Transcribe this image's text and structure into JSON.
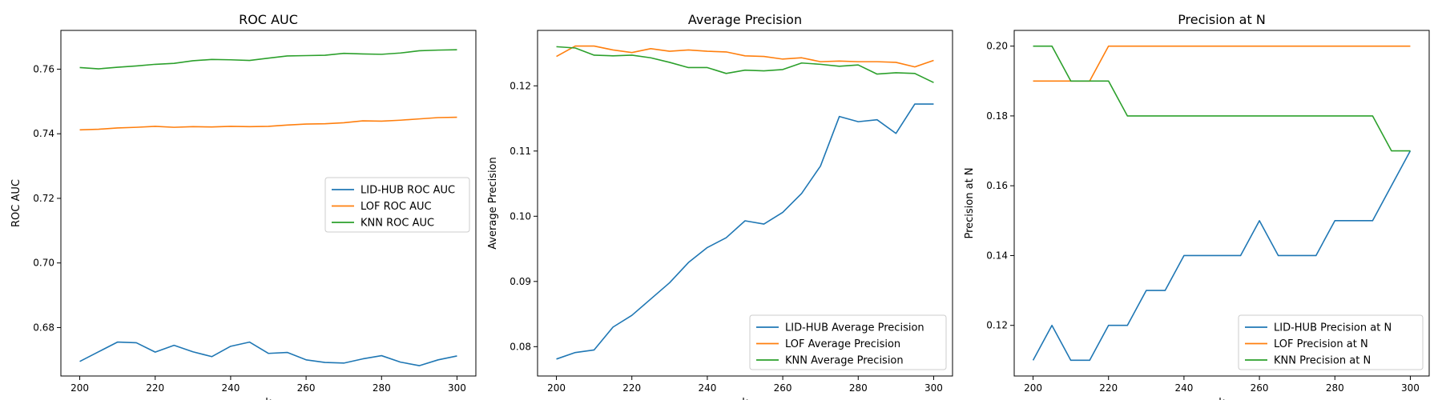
{
  "colors": {
    "lid_hub": "#1f77b4",
    "lof": "#ff7f0e",
    "knn": "#2ca02c"
  },
  "chart_data": [
    {
      "type": "line",
      "title": "ROC AUC",
      "xlabel": "k",
      "ylabel": "ROC AUC",
      "xlim": [
        195,
        305
      ],
      "ylim": [
        0.665,
        0.772
      ],
      "xticks": [
        200,
        220,
        240,
        260,
        280,
        300
      ],
      "xtick_labels": [
        "200",
        "220",
        "240",
        "260",
        "280",
        "300"
      ],
      "yticks": [
        0.68,
        0.7,
        0.72,
        0.74,
        0.76
      ],
      "ytick_labels": [
        "0.68",
        "0.70",
        "0.72",
        "0.74",
        "0.76"
      ],
      "legend_position": "center-right",
      "x": [
        200,
        205,
        210,
        215,
        220,
        225,
        230,
        235,
        240,
        245,
        250,
        255,
        260,
        265,
        270,
        275,
        280,
        285,
        290,
        295,
        300
      ],
      "series": [
        {
          "name": "LID-HUB ROC AUC",
          "color": "#1f77b4",
          "values": [
            0.6695,
            0.6725,
            0.6755,
            0.6753,
            0.6724,
            0.6745,
            0.6725,
            0.671,
            0.6742,
            0.6755,
            0.672,
            0.6723,
            0.67,
            0.6692,
            0.669,
            0.6703,
            0.6713,
            0.6693,
            0.6682,
            0.67,
            0.6712
          ]
        },
        {
          "name": "LOF ROC AUC",
          "color": "#ff7f0e",
          "values": [
            0.7412,
            0.7414,
            0.7418,
            0.742,
            0.7423,
            0.742,
            0.7422,
            0.7421,
            0.7423,
            0.7422,
            0.7423,
            0.7427,
            0.743,
            0.7431,
            0.7434,
            0.744,
            0.7439,
            0.7442,
            0.7446,
            0.745,
            0.7451
          ]
        },
        {
          "name": "KNN ROC AUC",
          "color": "#2ca02c",
          "values": [
            0.7605,
            0.7601,
            0.7606,
            0.761,
            0.7615,
            0.7618,
            0.7626,
            0.763,
            0.7629,
            0.7627,
            0.7634,
            0.7641,
            0.7642,
            0.7643,
            0.7649,
            0.7647,
            0.7646,
            0.765,
            0.7657,
            0.7659,
            0.766
          ]
        }
      ]
    },
    {
      "type": "line",
      "title": "Average Precision",
      "xlabel": "k",
      "ylabel": "Average Precision",
      "xlim": [
        195,
        305
      ],
      "ylim": [
        0.0755,
        0.1285
      ],
      "xticks": [
        200,
        220,
        240,
        260,
        280,
        300
      ],
      "xtick_labels": [
        "200",
        "220",
        "240",
        "260",
        "280",
        "300"
      ],
      "yticks": [
        0.08,
        0.09,
        0.1,
        0.11,
        0.12
      ],
      "ytick_labels": [
        "0.08",
        "0.09",
        "0.10",
        "0.11",
        "0.12"
      ],
      "legend_position": "lower-right",
      "x": [
        200,
        205,
        210,
        215,
        220,
        225,
        230,
        235,
        240,
        245,
        250,
        255,
        260,
        265,
        270,
        275,
        280,
        285,
        290,
        295,
        300
      ],
      "series": [
        {
          "name": "LID-HUB Average Precision",
          "color": "#1f77b4",
          "values": [
            0.0781,
            0.0791,
            0.0795,
            0.083,
            0.0848,
            0.0873,
            0.0898,
            0.0929,
            0.0952,
            0.0967,
            0.0993,
            0.0988,
            0.1006,
            0.1035,
            0.1077,
            0.1153,
            0.1145,
            0.1148,
            0.1127,
            0.1172,
            0.1172
          ]
        },
        {
          "name": "LOF Average Precision",
          "color": "#ff7f0e",
          "values": [
            0.1245,
            0.1261,
            0.1261,
            0.1255,
            0.1251,
            0.1257,
            0.1253,
            0.1255,
            0.1253,
            0.1252,
            0.1246,
            0.1245,
            0.1241,
            0.1243,
            0.1237,
            0.1238,
            0.1237,
            0.1237,
            0.1236,
            0.1229,
            0.1239
          ]
        },
        {
          "name": "KNN Average Precision",
          "color": "#2ca02c",
          "values": [
            0.126,
            0.1258,
            0.1247,
            0.1246,
            0.1247,
            0.1243,
            0.1236,
            0.1228,
            0.1228,
            0.1219,
            0.1224,
            0.1223,
            0.1225,
            0.1235,
            0.1233,
            0.123,
            0.1232,
            0.1218,
            0.122,
            0.1219,
            0.1205
          ]
        }
      ]
    },
    {
      "type": "line",
      "title": "Precision at N",
      "xlabel": "k",
      "ylabel": "Precision at N",
      "xlim": [
        195,
        305
      ],
      "ylim": [
        0.1055,
        0.2045
      ],
      "xticks": [
        200,
        220,
        240,
        260,
        280,
        300
      ],
      "xtick_labels": [
        "200",
        "220",
        "240",
        "260",
        "280",
        "300"
      ],
      "yticks": [
        0.12,
        0.14,
        0.16,
        0.18,
        0.2
      ],
      "ytick_labels": [
        "0.12",
        "0.14",
        "0.16",
        "0.18",
        "0.20"
      ],
      "legend_position": "lower-right",
      "x": [
        200,
        205,
        210,
        215,
        220,
        225,
        230,
        235,
        240,
        245,
        250,
        255,
        260,
        265,
        270,
        275,
        280,
        285,
        290,
        295,
        300
      ],
      "series": [
        {
          "name": "LID-HUB Precision at N",
          "color": "#1f77b4",
          "values": [
            0.11,
            0.12,
            0.11,
            0.11,
            0.12,
            0.12,
            0.13,
            0.13,
            0.14,
            0.14,
            0.14,
            0.14,
            0.15,
            0.14,
            0.14,
            0.14,
            0.15,
            0.15,
            0.15,
            0.16,
            0.17
          ]
        },
        {
          "name": "LOF Precision at N",
          "color": "#ff7f0e",
          "values": [
            0.19,
            0.19,
            0.19,
            0.19,
            0.2,
            0.2,
            0.2,
            0.2,
            0.2,
            0.2,
            0.2,
            0.2,
            0.2,
            0.2,
            0.2,
            0.2,
            0.2,
            0.2,
            0.2,
            0.2,
            0.2
          ]
        },
        {
          "name": "KNN Precision at N",
          "color": "#2ca02c",
          "values": [
            0.2,
            0.2,
            0.19,
            0.19,
            0.19,
            0.18,
            0.18,
            0.18,
            0.18,
            0.18,
            0.18,
            0.18,
            0.18,
            0.18,
            0.18,
            0.18,
            0.18,
            0.18,
            0.18,
            0.17,
            0.17
          ]
        }
      ]
    }
  ]
}
